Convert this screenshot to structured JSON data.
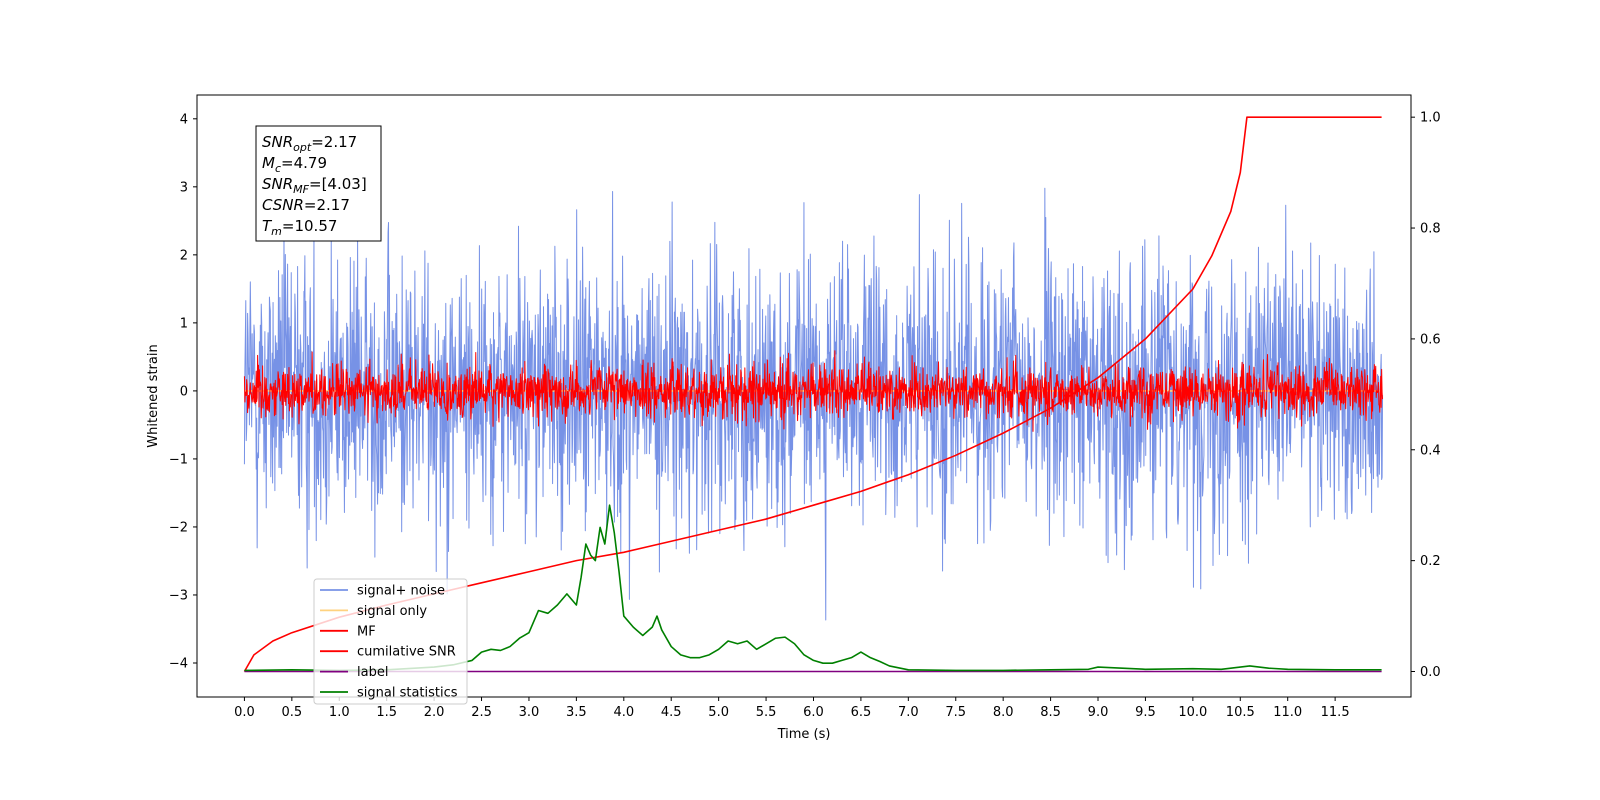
{
  "chart_data": {
    "type": "line",
    "xlabel": "Time (s)",
    "ylabel": "Whitened strain",
    "xlim": [
      -0.5,
      12.3
    ],
    "ylim_left": [
      -4.5,
      4.35
    ],
    "ylim_right": [
      -0.046,
      1.04
    ],
    "x_ticks": [
      0.0,
      0.5,
      1.0,
      1.5,
      2.0,
      2.5,
      3.0,
      3.5,
      4.0,
      4.5,
      5.0,
      5.5,
      6.0,
      6.5,
      7.0,
      7.5,
      8.0,
      8.5,
      9.0,
      9.5,
      10.0,
      10.5,
      11.0,
      11.5
    ],
    "x_tick_labels": [
      "0.0",
      "0.5",
      "1.0",
      "1.5",
      "2.0",
      "2.5",
      "3.0",
      "3.5",
      "4.0",
      "4.5",
      "5.0",
      "5.5",
      "6.0",
      "6.5",
      "7.0",
      "7.5",
      "8.0",
      "8.5",
      "9.0",
      "9.5",
      "10.0",
      "10.5",
      "11.0",
      "11.5"
    ],
    "y_ticks_left": [
      4,
      3,
      2,
      1,
      0,
      -1,
      -2,
      -3,
      -4
    ],
    "y_tick_labels_left": [
      "4",
      "3",
      "2",
      "1",
      "0",
      "−1",
      "−2",
      "−3",
      "−4"
    ],
    "y_ticks_right": [
      1.0,
      0.8,
      0.6,
      0.4,
      0.2,
      0.0
    ],
    "y_tick_labels_right": [
      "1.0",
      "0.8",
      "0.6",
      "0.4",
      "0.2",
      "0.0"
    ],
    "grid": false,
    "legend_position": "lower-left",
    "legend": [
      "signal+ noise",
      "signal only",
      "MF",
      "cumilative SNR",
      "label",
      "signal statistics"
    ],
    "series": [
      {
        "name": "signal+ noise",
        "axis": "left",
        "color": "#7792e6",
        "style": "noise",
        "x_range": [
          0,
          12.0
        ],
        "sigma": 1.0
      },
      {
        "name": "signal only",
        "axis": "left",
        "color": "#ffd27f",
        "style": "flat",
        "x": [
          0,
          12.0
        ],
        "y": [
          0,
          0
        ]
      },
      {
        "name": "MF",
        "axis": "left",
        "color": "#ff0000",
        "style": "noise",
        "x_range": [
          0,
          12.0
        ],
        "sigma": 0.2
      },
      {
        "name": "cumilative SNR",
        "axis": "right",
        "color": "#ff0000",
        "style": "line",
        "x": [
          0,
          0.1,
          0.3,
          0.5,
          1.0,
          1.5,
          2.0,
          2.5,
          3.0,
          3.5,
          4.0,
          4.5,
          5.0,
          5.5,
          6.0,
          6.5,
          7.0,
          7.5,
          8.0,
          8.5,
          9.0,
          9.5,
          10.0,
          10.2,
          10.4,
          10.5,
          10.57,
          10.6,
          11.0,
          11.5,
          11.99
        ],
        "y": [
          0.0,
          0.03,
          0.055,
          0.07,
          0.098,
          0.12,
          0.14,
          0.16,
          0.18,
          0.2,
          0.215,
          0.235,
          0.255,
          0.275,
          0.3,
          0.325,
          0.355,
          0.39,
          0.43,
          0.475,
          0.53,
          0.6,
          0.69,
          0.75,
          0.83,
          0.9,
          1.0,
          1.0,
          1.0,
          1.0,
          1.0
        ]
      },
      {
        "name": "label",
        "axis": "right",
        "color": "#800080",
        "style": "line",
        "x": [
          0,
          11.99
        ],
        "y": [
          0.0,
          0.0
        ]
      },
      {
        "name": "signal statistics",
        "axis": "right",
        "color": "#008000",
        "style": "line",
        "x": [
          0,
          0.5,
          1.0,
          1.5,
          2.0,
          2.2,
          2.4,
          2.5,
          2.6,
          2.7,
          2.8,
          2.9,
          3.0,
          3.1,
          3.2,
          3.3,
          3.4,
          3.5,
          3.55,
          3.6,
          3.65,
          3.7,
          3.75,
          3.8,
          3.85,
          3.9,
          3.95,
          4.0,
          4.1,
          4.2,
          4.3,
          4.35,
          4.4,
          4.5,
          4.6,
          4.7,
          4.8,
          4.9,
          5.0,
          5.1,
          5.2,
          5.3,
          5.4,
          5.5,
          5.6,
          5.7,
          5.8,
          5.9,
          6.0,
          6.1,
          6.2,
          6.3,
          6.4,
          6.5,
          6.6,
          6.7,
          6.8,
          7.0,
          7.5,
          8.0,
          8.5,
          8.9,
          9.0,
          9.5,
          10.0,
          10.3,
          10.5,
          10.6,
          10.8,
          11.0,
          11.5,
          11.99
        ],
        "y": [
          0.002,
          0.003,
          0.002,
          0.003,
          0.008,
          0.012,
          0.02,
          0.035,
          0.04,
          0.038,
          0.045,
          0.06,
          0.07,
          0.11,
          0.105,
          0.12,
          0.14,
          0.12,
          0.17,
          0.23,
          0.21,
          0.2,
          0.26,
          0.23,
          0.3,
          0.25,
          0.18,
          0.1,
          0.08,
          0.065,
          0.08,
          0.1,
          0.075,
          0.045,
          0.03,
          0.025,
          0.025,
          0.03,
          0.04,
          0.055,
          0.05,
          0.055,
          0.04,
          0.05,
          0.06,
          0.062,
          0.05,
          0.03,
          0.02,
          0.015,
          0.015,
          0.02,
          0.025,
          0.035,
          0.025,
          0.018,
          0.01,
          0.003,
          0.002,
          0.002,
          0.003,
          0.004,
          0.008,
          0.004,
          0.005,
          0.004,
          0.008,
          0.01,
          0.006,
          0.004,
          0.003,
          0.003
        ]
      }
    ],
    "annotation": [
      {
        "name": "SNR",
        "sub": "opt",
        "value": "=2.17"
      },
      {
        "name": "M",
        "sub": "c",
        "value": "=4.79"
      },
      {
        "name": "SNR",
        "sub": "MF",
        "value": "=[4.03]"
      },
      {
        "name": "CSNR",
        "sub": "",
        "value": "=2.17"
      },
      {
        "name": "T",
        "sub": "m",
        "value": "=10.57"
      }
    ]
  }
}
